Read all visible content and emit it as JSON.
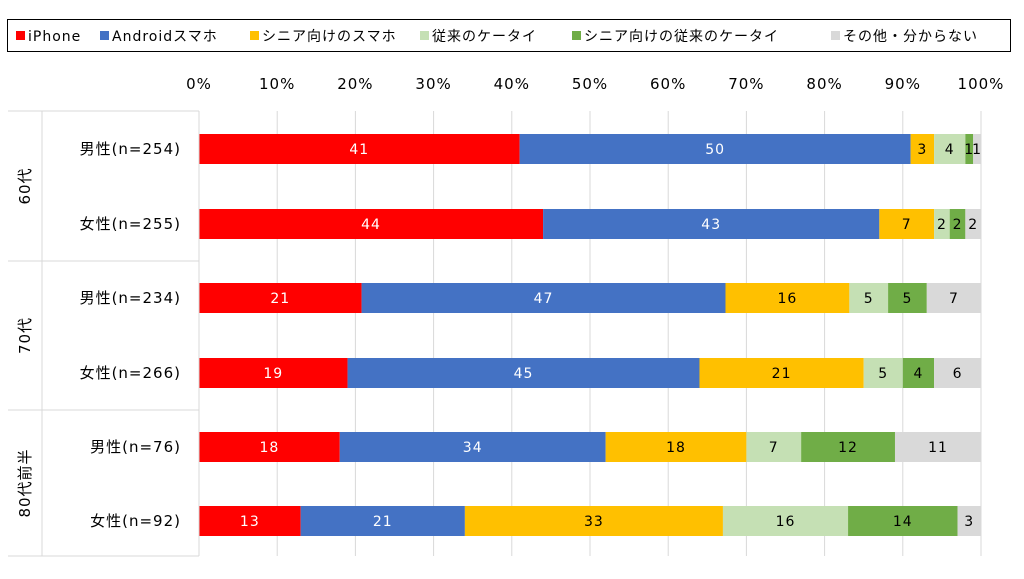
{
  "chart_data": {
    "type": "bar",
    "orientation": "horizontal",
    "stacked": "percent",
    "legend_position": "top",
    "grid": true,
    "x_ticks": [
      "0%",
      "10%",
      "20%",
      "30%",
      "40%",
      "50%",
      "60%",
      "70%",
      "80%",
      "90%",
      "100%"
    ],
    "xlim": [
      0,
      100
    ],
    "groups": [
      {
        "label": "60代",
        "categories": [
          "男性(n=254)",
          "女性(n=255)"
        ]
      },
      {
        "label": "70代",
        "categories": [
          "男性(n=234)",
          "女性(n=266)"
        ]
      },
      {
        "label": "80代前半",
        "categories": [
          "男性(n=76)",
          "女性(n=92)"
        ]
      }
    ],
    "series": [
      {
        "name": "iPhone",
        "color": "#ff0000",
        "values": [
          41,
          44,
          21,
          19,
          18,
          13
        ]
      },
      {
        "name": "Androidスマホ",
        "color": "#4472c4",
        "values": [
          50,
          43,
          47,
          45,
          34,
          21
        ]
      },
      {
        "name": "シニア向けのスマホ",
        "color": "#ffc000",
        "values": [
          3,
          7,
          16,
          21,
          18,
          33
        ]
      },
      {
        "name": "従来のケータイ",
        "color": "#c5e0b4",
        "values": [
          4,
          2,
          5,
          5,
          7,
          16
        ]
      },
      {
        "name": "シニア向けの従来のケータイ",
        "color": "#70ad47",
        "values": [
          1,
          2,
          5,
          4,
          12,
          14
        ]
      },
      {
        "name": "その他・分からない",
        "color": "#d9d9d9",
        "values": [
          1,
          2,
          7,
          6,
          11,
          3
        ]
      }
    ],
    "label_colors": [
      "#ffffff",
      "#ffffff",
      "#000000",
      "#000000",
      "#000000",
      "#000000"
    ]
  }
}
